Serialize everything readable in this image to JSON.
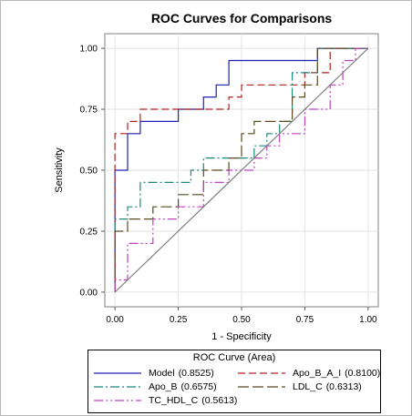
{
  "chart_data": {
    "type": "line",
    "title": "ROC Curves for Comparisons",
    "xlabel": "1 - Specificity",
    "ylabel": "Sensitivity",
    "xlim": [
      -0.04,
      1.04
    ],
    "ylim": [
      -0.06,
      1.06
    ],
    "xticks": [
      "0.00",
      "0.25",
      "0.50",
      "0.75",
      "1.00"
    ],
    "xtick_values": [
      0,
      0.25,
      0.5,
      0.75,
      1.0
    ],
    "yticks": [
      "0.00",
      "0.25",
      "0.50",
      "0.75",
      "1.00"
    ],
    "ytick_values": [
      0,
      0.25,
      0.5,
      0.75,
      1.0
    ],
    "grid": true,
    "legend_title": "ROC Curve (Area)",
    "legend_position": "bottom",
    "series": [
      {
        "name": "Model",
        "area": "(0.8525)",
        "color": "#1f1fb5",
        "dash": "",
        "x": [
          0,
          0,
          0.05,
          0.05,
          0.1,
          0.1,
          0.25,
          0.25,
          0.35,
          0.35,
          0.4,
          0.4,
          0.45,
          0.45,
          0.6,
          0.6,
          0.8,
          0.8,
          1.0
        ],
        "y": [
          0,
          0.5,
          0.5,
          0.65,
          0.65,
          0.7,
          0.7,
          0.75,
          0.75,
          0.8,
          0.8,
          0.85,
          0.85,
          0.95,
          0.95,
          0.95,
          0.95,
          1.0,
          1.0
        ]
      },
      {
        "name": "Apo_B_A_I",
        "area": "(0.8100)",
        "color": "#b02020",
        "dash": "8,4",
        "x": [
          0,
          0,
          0.05,
          0.05,
          0.1,
          0.1,
          0.45,
          0.45,
          0.5,
          0.5,
          0.65,
          0.65,
          0.75,
          0.75,
          0.85,
          0.85,
          1.0
        ],
        "y": [
          0,
          0.65,
          0.65,
          0.7,
          0.7,
          0.75,
          0.75,
          0.8,
          0.8,
          0.85,
          0.85,
          0.85,
          0.85,
          0.9,
          0.9,
          1.0,
          1.0
        ]
      },
      {
        "name": "Apo_B",
        "area": "(0.6575)",
        "color": "#1b8a7a",
        "dash": "10,3,2,3",
        "x": [
          0,
          0,
          0.05,
          0.05,
          0.1,
          0.1,
          0.3,
          0.3,
          0.35,
          0.35,
          0.45,
          0.45,
          0.55,
          0.55,
          0.6,
          0.6,
          0.65,
          0.65,
          0.7,
          0.7,
          0.8,
          0.8,
          1.0
        ],
        "y": [
          0.25,
          0.3,
          0.3,
          0.35,
          0.35,
          0.45,
          0.45,
          0.5,
          0.5,
          0.55,
          0.55,
          0.55,
          0.55,
          0.6,
          0.6,
          0.65,
          0.65,
          0.7,
          0.7,
          0.9,
          0.9,
          1.0,
          1.0
        ]
      },
      {
        "name": "LDL_C",
        "area": "(0.6313)",
        "color": "#5a4a20",
        "dash": "12,4",
        "x": [
          0,
          0,
          0.05,
          0.05,
          0.15,
          0.15,
          0.25,
          0.25,
          0.35,
          0.35,
          0.45,
          0.45,
          0.5,
          0.5,
          0.55,
          0.55,
          0.6,
          0.6,
          0.7,
          0.7,
          0.75,
          0.75,
          0.8,
          0.8,
          1.0
        ],
        "y": [
          0,
          0.25,
          0.25,
          0.3,
          0.3,
          0.35,
          0.35,
          0.4,
          0.4,
          0.5,
          0.5,
          0.55,
          0.55,
          0.65,
          0.65,
          0.7,
          0.7,
          0.7,
          0.7,
          0.8,
          0.8,
          0.85,
          0.85,
          1.0,
          1.0
        ]
      },
      {
        "name": "TC_HDL_C",
        "area": "(0.5613)",
        "color": "#c040c0",
        "dash": "10,3,2,3,2,3",
        "x": [
          0,
          0,
          0.05,
          0.05,
          0.15,
          0.15,
          0.25,
          0.25,
          0.35,
          0.35,
          0.45,
          0.45,
          0.55,
          0.55,
          0.6,
          0.6,
          0.65,
          0.65,
          0.75,
          0.75,
          0.85,
          0.85,
          0.9,
          0.9,
          0.95,
          0.95,
          1.0
        ],
        "y": [
          0,
          0.05,
          0.05,
          0.2,
          0.2,
          0.3,
          0.3,
          0.35,
          0.35,
          0.45,
          0.45,
          0.5,
          0.5,
          0.55,
          0.55,
          0.6,
          0.6,
          0.65,
          0.65,
          0.75,
          0.75,
          0.85,
          0.85,
          0.95,
          0.95,
          1.0,
          1.0
        ]
      },
      {
        "name": "",
        "area": "",
        "color": "#808080",
        "dash": "",
        "x": [
          0,
          1.0
        ],
        "y": [
          0,
          1.0
        ]
      }
    ]
  }
}
